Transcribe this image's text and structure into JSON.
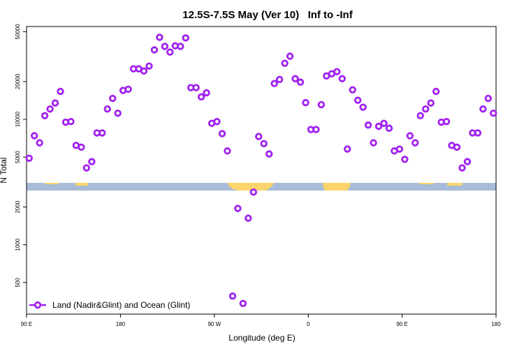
{
  "chart_data": {
    "type": "scatter",
    "title": "12.5S-7.5S May (Ver 10)   Inf to -Inf",
    "x_label": "Longitude (deg E)",
    "y_label": "N Total",
    "log_y": true,
    "xlim": [
      90,
      540
    ],
    "ylim": [
      280,
      55000
    ],
    "xticks": [
      {
        "value": 90,
        "label": "90 E"
      },
      180,
      {
        "value": 270,
        "label": "90 W"
      },
      {
        "value": 360,
        "label": "0"
      },
      {
        "value": 450,
        "label": "90 E"
      },
      {
        "value": 540,
        "label": "180"
      }
    ],
    "yticks": [
      500,
      1000,
      2000,
      5000,
      10000,
      20000,
      50000
    ],
    "legend": "bottom-left",
    "series": [
      {
        "name": "Land (Nadir&Glint) and Ocean (Glint)",
        "color": "#a020f0",
        "x": [
          92.5,
          97.5,
          102.5,
          107.5,
          112.5,
          117.5,
          122.5,
          127.5,
          132.5,
          137.5,
          142.5,
          147.5,
          152.5,
          157.5,
          162.5,
          167.5,
          172.5,
          177.5,
          182.5,
          187.5,
          192.5,
          197.5,
          202.5,
          207.5,
          212.5,
          217.5,
          222.5,
          227.5,
          232.5,
          237.5,
          242.5,
          247.5,
          252.5,
          257.5,
          262.5,
          267.5,
          272.5,
          277.5,
          282.5,
          287.5,
          292.5,
          297.5,
          302.5,
          307.5,
          312.5,
          317.5,
          322.5,
          327.5,
          332.5,
          337.5,
          342.5,
          347.5,
          352.5,
          357.5,
          362.5,
          367.5,
          372.5,
          377.5,
          382.5,
          387.5,
          392.5,
          397.5,
          402.5,
          407.5,
          412.5,
          417.5,
          422.5,
          427.5,
          432.5,
          437.5,
          442.5,
          447.5,
          452.5,
          457.5,
          462.5,
          467.5,
          472.5,
          477.5,
          482.5,
          487.5,
          492.5,
          497.5,
          502.5,
          507.5,
          512.5,
          517.5,
          522.5,
          527.5,
          532.5,
          537.5
        ],
        "values": [
          4900,
          7400,
          6500,
          10700,
          12100,
          13500,
          16700,
          9500,
          9600,
          6200,
          6000,
          4100,
          4600,
          7800,
          7800,
          12100,
          14700,
          11200,
          17000,
          17400,
          25300,
          25300,
          24300,
          26600,
          35800,
          45100,
          38200,
          34400,
          38600,
          38200,
          44600,
          17900,
          17900,
          15100,
          16300,
          9300,
          9600,
          7700,
          5600,
          390,
          1950,
          340,
          1630,
          2630,
          7300,
          6400,
          5300,
          19300,
          20800,
          28000,
          31900,
          21100,
          19800,
          13600,
          8300,
          8300,
          13100,
          22200,
          23100,
          24000,
          21100,
          5800,
          17200,
          14200,
          12500,
          9000,
          6500,
          8800,
          9300,
          8500,
          5600,
          5800,
          4800,
          7400,
          6500,
          10700,
          12100,
          13500,
          16700,
          9500,
          9600,
          6200,
          6000,
          4100,
          4600,
          7800,
          7800,
          12100,
          14700,
          11200
        ]
      }
    ]
  }
}
